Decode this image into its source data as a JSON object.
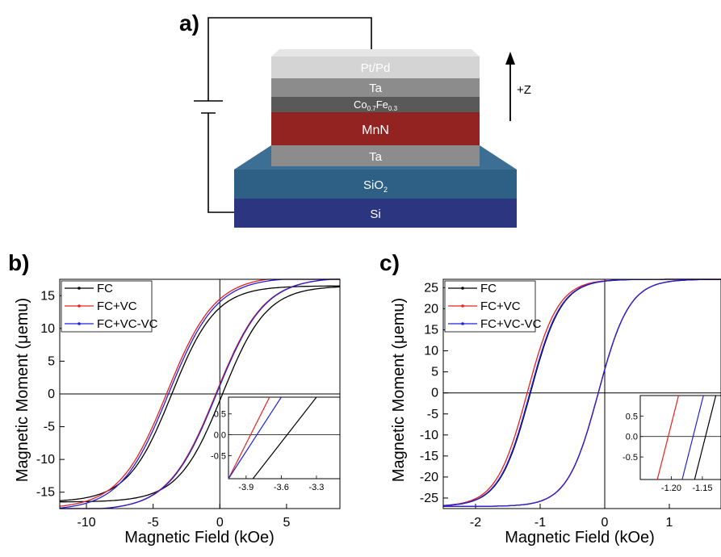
{
  "panel_a": {
    "label": "a)",
    "layers": {
      "pt_pd": "Pt/Pd",
      "ta_top": "Ta",
      "cofe": {
        "base1": "Co",
        "sub1": "0.7",
        "base2": "Fe",
        "sub2": "0.3"
      },
      "mnn": "MnN",
      "ta_bottom": "Ta",
      "sio2": {
        "base": "SiO",
        "sub": "2"
      },
      "si": "Si"
    },
    "axis_label": "+Z",
    "colors": {
      "pt_pd": "#d4d4d4",
      "ta": "#8c8c8c",
      "cofe": "#595959",
      "mnn": "#922321",
      "sio2": "#2e5f85",
      "si": "#2b3580"
    }
  },
  "chart_data": [
    {
      "panel_label": "b)",
      "type": "line",
      "xlabel": "Magnetic Field (kOe)",
      "ylabel": "Magnetic Moment (μemu)",
      "xlim": [
        -12,
        9
      ],
      "ylim": [
        -17.5,
        17.5
      ],
      "xticks": [
        -10,
        -5,
        0,
        5
      ],
      "yticks": [
        -15,
        -10,
        -5,
        0,
        5,
        10,
        15
      ],
      "legend": "top-left",
      "series": [
        {
          "name": "FC",
          "color": "#000000",
          "Ms": 16.5,
          "hc_desc": -3.6,
          "hc_asc": 0.2,
          "w": 3.3,
          "shift_desc": 0.0
        },
        {
          "name": "FC+VC",
          "color": "#e8201f",
          "Ms": 17.8,
          "hc_desc": -3.95,
          "hc_asc": -0.3,
          "w": 3.6,
          "shift_desc": 0.25
        },
        {
          "name": "FC+VC-VC",
          "color": "#2222dd",
          "Ms": 17.8,
          "hc_desc": -3.85,
          "hc_asc": -0.25,
          "w": 3.6,
          "shift_desc": 0.0
        }
      ],
      "inset": {
        "xlim": [
          -4.05,
          -3.1
        ],
        "ylim": [
          -1.05,
          0.9
        ],
        "xticks": [
          -3.9,
          -3.6,
          -3.3
        ],
        "yticks": [
          -0.5,
          0.0,
          0.5
        ],
        "ytick_labels": [
          "-0.5",
          "0.0",
          "0.5"
        ],
        "lines": [
          {
            "series": "FC+VC",
            "x0": -3.95,
            "slope": 3.6
          },
          {
            "series": "FC+VC-VC",
            "x0": -3.85,
            "slope": 3.6
          },
          {
            "series": "FC",
            "x0": -3.55,
            "slope": 3.6
          }
        ]
      }
    },
    {
      "panel_label": "c)",
      "type": "line",
      "xlabel": "Magnetic Field (kOe)",
      "ylabel": "Magnetic Moment (μemu)",
      "xlim": [
        -2.5,
        1.8
      ],
      "ylim": [
        -27.5,
        27
      ],
      "xticks": [
        -2,
        -1,
        0,
        1
      ],
      "yticks": [
        -25,
        -20,
        -15,
        -10,
        -5,
        0,
        5,
        10,
        15,
        20,
        25
      ],
      "legend": "top-left",
      "series": [
        {
          "name": "FC",
          "color": "#000000",
          "Ms": 27.0,
          "hc_desc": -1.15,
          "hc_asc": -0.1,
          "w": 0.48,
          "shift_desc": 0.0
        },
        {
          "name": "FC+VC",
          "color": "#e8201f",
          "Ms": 27.0,
          "hc_desc": -1.2,
          "hc_asc": -0.1,
          "w": 0.48,
          "shift_desc": 0.0
        },
        {
          "name": "FC+VC-VC",
          "color": "#2222dd",
          "Ms": 27.0,
          "hc_desc": -1.16,
          "hc_asc": -0.1,
          "w": 0.48,
          "shift_desc": 0.0
        }
      ],
      "inset": {
        "xlim": [
          -1.25,
          -1.12
        ],
        "ylim": [
          -1.05,
          1.0
        ],
        "xticks": [
          -1.2,
          -1.15
        ],
        "yticks": [
          -0.5,
          0.0,
          0.5
        ],
        "ytick_labels": [
          "-0.5",
          "0.0",
          "0.5"
        ],
        "xtick_labels": [
          "-1.20",
          "-1.15"
        ],
        "lines": [
          {
            "series": "FC+VC",
            "x0": -1.205,
            "slope": 60
          },
          {
            "series": "FC+VC-VC",
            "x0": -1.165,
            "slope": 60
          },
          {
            "series": "FC",
            "x0": -1.145,
            "slope": 60
          }
        ]
      }
    }
  ]
}
